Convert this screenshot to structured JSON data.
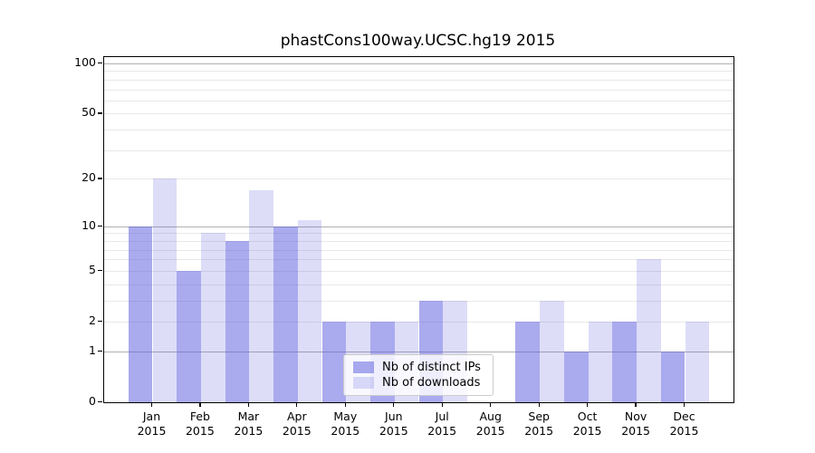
{
  "title": "phastCons100way.UCSC.hg19 2015",
  "chart_data": {
    "type": "bar",
    "title": "phastCons100way.UCSC.hg19 2015",
    "categories": [
      "Jan 2015",
      "Feb 2015",
      "Mar 2015",
      "Apr 2015",
      "May 2015",
      "Jun 2015",
      "Jul 2015",
      "Aug 2015",
      "Sep 2015",
      "Oct 2015",
      "Nov 2015",
      "Dec 2015"
    ],
    "x_ticks": [
      {
        "month": "Jan",
        "year": "2015"
      },
      {
        "month": "Feb",
        "year": "2015"
      },
      {
        "month": "Mar",
        "year": "2015"
      },
      {
        "month": "Apr",
        "year": "2015"
      },
      {
        "month": "May",
        "year": "2015"
      },
      {
        "month": "Jun",
        "year": "2015"
      },
      {
        "month": "Jul",
        "year": "2015"
      },
      {
        "month": "Aug",
        "year": "2015"
      },
      {
        "month": "Sep",
        "year": "2015"
      },
      {
        "month": "Oct",
        "year": "2015"
      },
      {
        "month": "Nov",
        "year": "2015"
      },
      {
        "month": "Dec",
        "year": "2015"
      }
    ],
    "series": [
      {
        "name": "Nb of distinct IPs",
        "color": "rgba(85,85,221,0.5)",
        "values": [
          10,
          5,
          8,
          10,
          2,
          2,
          3,
          0,
          2,
          1,
          2,
          1
        ]
      },
      {
        "name": "Nb of downloads",
        "color": "rgba(85,85,221,0.2)",
        "values": [
          20,
          9,
          17,
          11,
          2,
          2,
          3,
          0,
          3,
          2,
          6,
          2
        ]
      }
    ],
    "yscale": "log1p",
    "ylim": [
      0,
      110
    ],
    "y_ticks": [
      0,
      1,
      2,
      5,
      10,
      20,
      50,
      100
    ],
    "y_major_gridlines": [
      1,
      10,
      100
    ],
    "y_minor_gridlines": [
      2,
      3,
      4,
      5,
      6,
      7,
      8,
      9,
      20,
      30,
      40,
      50,
      60,
      70,
      80,
      90
    ],
    "grid": true,
    "legend_position": "bottom-center-inside"
  },
  "legend": {
    "items": [
      {
        "label": "Nb of distinct IPs",
        "swatch": "rgba(85,85,221,0.5)"
      },
      {
        "label": "Nb of downloads",
        "swatch": "rgba(85,85,221,0.2)"
      }
    ]
  },
  "colors": {
    "background": "#ffffff",
    "bar_distinct_ips": "rgba(85,85,221,0.5)",
    "bar_downloads": "rgba(85,85,221,0.2)",
    "grid_major": "#b0b0b0",
    "grid_minor": "#e8e8e8",
    "spine": "#000000",
    "text": "#000000",
    "legend_border": "#cccccc",
    "legend_background": "rgba(255,255,255,0.8)"
  }
}
